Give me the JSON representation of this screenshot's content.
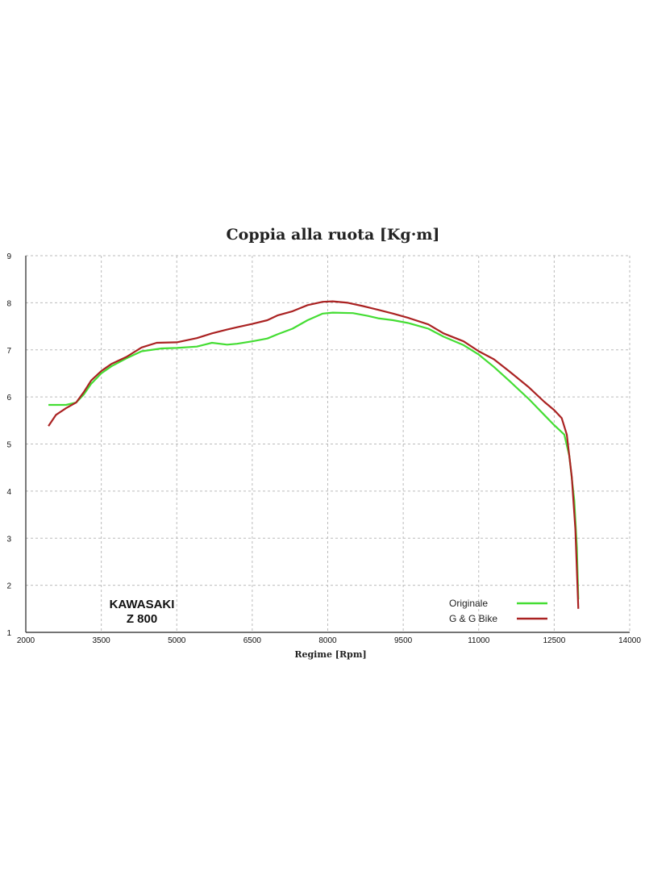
{
  "chart_data": {
    "type": "line",
    "title": "Coppia alla ruota  [Kg·m]",
    "xlabel": "Regime [Rpm]",
    "ylabel": "",
    "xlim": [
      2000,
      14000
    ],
    "ylim": [
      1,
      9
    ],
    "x_ticks": [
      "2000",
      "3500",
      "5000",
      "6500",
      "8000",
      "9500",
      "11000",
      "12500",
      "14000"
    ],
    "y_ticks": [
      "1",
      "2",
      "3",
      "4",
      "5",
      "6",
      "7",
      "8",
      "9"
    ],
    "grid": true,
    "legend_position": "bottom-right",
    "annotation": [
      "KAWASAKI",
      "Z 800"
    ],
    "series": [
      {
        "name": "Originale",
        "color": "#44dd33",
        "points": [
          [
            2450,
            5.83
          ],
          [
            2600,
            5.83
          ],
          [
            2800,
            5.83
          ],
          [
            3000,
            5.88
          ],
          [
            3150,
            6.05
          ],
          [
            3300,
            6.28
          ],
          [
            3500,
            6.5
          ],
          [
            3700,
            6.65
          ],
          [
            4000,
            6.82
          ],
          [
            4300,
            6.97
          ],
          [
            4700,
            7.03
          ],
          [
            5000,
            7.04
          ],
          [
            5400,
            7.07
          ],
          [
            5700,
            7.15
          ],
          [
            6000,
            7.11
          ],
          [
            6200,
            7.13
          ],
          [
            6500,
            7.18
          ],
          [
            6800,
            7.24
          ],
          [
            7000,
            7.33
          ],
          [
            7300,
            7.45
          ],
          [
            7600,
            7.63
          ],
          [
            7900,
            7.77
          ],
          [
            8100,
            7.79
          ],
          [
            8500,
            7.78
          ],
          [
            8800,
            7.72
          ],
          [
            9000,
            7.67
          ],
          [
            9300,
            7.63
          ],
          [
            9600,
            7.57
          ],
          [
            10000,
            7.45
          ],
          [
            10300,
            7.28
          ],
          [
            10700,
            7.1
          ],
          [
            11000,
            6.9
          ],
          [
            11300,
            6.64
          ],
          [
            11600,
            6.35
          ],
          [
            12000,
            5.95
          ],
          [
            12300,
            5.62
          ],
          [
            12500,
            5.4
          ],
          [
            12700,
            5.2
          ],
          [
            12800,
            4.75
          ],
          [
            12900,
            3.8
          ],
          [
            12950,
            2.8
          ],
          [
            12980,
            1.7
          ]
        ]
      },
      {
        "name": "G & G Bike",
        "color": "#aa2222",
        "points": [
          [
            2450,
            5.38
          ],
          [
            2600,
            5.62
          ],
          [
            2800,
            5.76
          ],
          [
            3000,
            5.88
          ],
          [
            3150,
            6.1
          ],
          [
            3300,
            6.35
          ],
          [
            3500,
            6.55
          ],
          [
            3700,
            6.7
          ],
          [
            4000,
            6.85
          ],
          [
            4300,
            7.05
          ],
          [
            4600,
            7.15
          ],
          [
            5000,
            7.16
          ],
          [
            5400,
            7.25
          ],
          [
            5700,
            7.35
          ],
          [
            6000,
            7.43
          ],
          [
            6200,
            7.48
          ],
          [
            6500,
            7.55
          ],
          [
            6800,
            7.63
          ],
          [
            7000,
            7.73
          ],
          [
            7300,
            7.82
          ],
          [
            7600,
            7.95
          ],
          [
            7900,
            8.02
          ],
          [
            8100,
            8.03
          ],
          [
            8400,
            8.0
          ],
          [
            8700,
            7.93
          ],
          [
            9000,
            7.85
          ],
          [
            9300,
            7.77
          ],
          [
            9600,
            7.68
          ],
          [
            10000,
            7.54
          ],
          [
            10300,
            7.35
          ],
          [
            10700,
            7.18
          ],
          [
            11000,
            6.97
          ],
          [
            11300,
            6.8
          ],
          [
            11600,
            6.55
          ],
          [
            12000,
            6.2
          ],
          [
            12300,
            5.9
          ],
          [
            12500,
            5.72
          ],
          [
            12650,
            5.55
          ],
          [
            12750,
            5.2
          ],
          [
            12850,
            4.3
          ],
          [
            12920,
            3.2
          ],
          [
            12980,
            1.5
          ]
        ]
      }
    ]
  }
}
